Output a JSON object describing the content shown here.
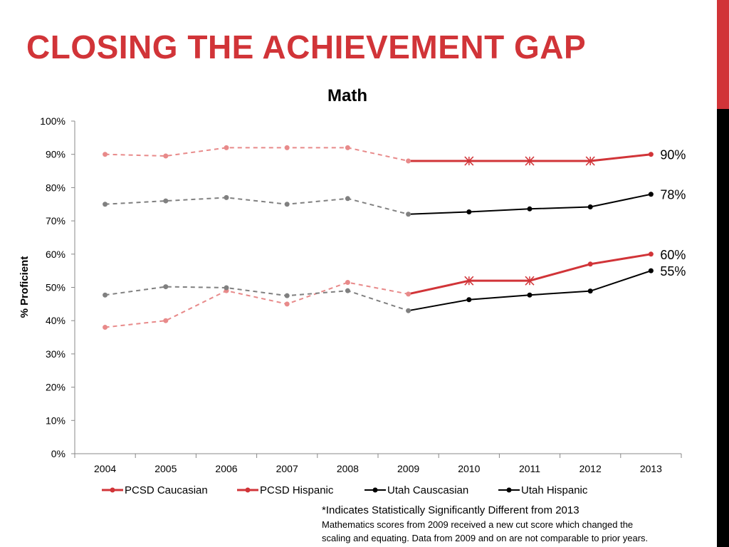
{
  "slide": {
    "title": "CLOSING THE ACHIEVEMENT GAP",
    "accent_color": "#d13438",
    "footnote_line1": "*Indicates Statistically Significantly Different from 2013",
    "footnote_line2": "Mathematics scores from 2009 received a new cut score which changed the",
    "footnote_line3": "scaling and equating. Data from 2009 and on are not comparable to prior years."
  },
  "chart_data": {
    "type": "line",
    "title": "Math",
    "xlabel": "",
    "ylabel": "% Proficient",
    "x": [
      "2004",
      "2005",
      "2006",
      "2007",
      "2008",
      "2009",
      "2010",
      "2011",
      "2012",
      "2013"
    ],
    "ylim": [
      0,
      100
    ],
    "yticks": [
      "0%",
      "10%",
      "20%",
      "30%",
      "40%",
      "50%",
      "60%",
      "70%",
      "80%",
      "90%",
      "100%"
    ],
    "grid": false,
    "legend_position": "bottom",
    "note": "Values for 2004-2008 drawn as dashed lighter lines; 2009-2013 solid",
    "series": [
      {
        "name": "PCSD Caucasian",
        "color": "#d13438",
        "faded_color": "#e88a8a",
        "values": [
          90,
          89.5,
          92,
          92,
          92,
          88,
          88,
          88,
          88,
          90
        ],
        "significant_markers": [
          false,
          false,
          false,
          false,
          false,
          false,
          true,
          true,
          true,
          false
        ],
        "end_label": "90%"
      },
      {
        "name": "PCSD Hispanic",
        "color": "#d13438",
        "faded_color": "#e88a8a",
        "values": [
          38,
          40,
          49,
          45,
          51.5,
          48,
          52,
          52,
          57,
          60
        ],
        "significant_markers": [
          false,
          false,
          false,
          false,
          false,
          false,
          true,
          true,
          false,
          false
        ],
        "end_label": "60%"
      },
      {
        "name": "Utah Causcasian",
        "color": "#000000",
        "faded_color": "#808080",
        "values": [
          75,
          76,
          77,
          75,
          76.7,
          72,
          72.7,
          73.6,
          74.2,
          78
        ],
        "significant_markers": [
          false,
          false,
          false,
          false,
          false,
          false,
          false,
          false,
          false,
          false
        ],
        "end_label": "78%"
      },
      {
        "name": "Utah Hispanic",
        "color": "#000000",
        "faded_color": "#808080",
        "values": [
          47.7,
          50.2,
          49.9,
          47.5,
          49,
          43,
          46.3,
          47.7,
          48.9,
          55
        ],
        "significant_markers": [
          false,
          false,
          false,
          false,
          false,
          false,
          false,
          false,
          false,
          false
        ],
        "end_label": "55%"
      }
    ]
  }
}
